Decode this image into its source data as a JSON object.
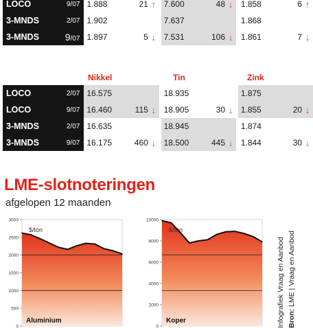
{
  "table_top": {
    "rows": [
      {
        "label": "LOCO",
        "date": "9/07",
        "cells": [
          {
            "value": "1.888",
            "change": "21",
            "dir": "up"
          },
          {
            "value": "7.600",
            "change": "48",
            "dir": "down"
          },
          {
            "value": "1.858",
            "change": "6",
            "dir": "up"
          }
        ]
      },
      {
        "label": "3-MNDS",
        "date": "2/07",
        "cells": [
          {
            "value": "1.902",
            "change": "",
            "dir": ""
          },
          {
            "value": "7.637",
            "change": "",
            "dir": ""
          },
          {
            "value": "1.868",
            "change": "",
            "dir": ""
          }
        ]
      },
      {
        "label": "3-MNDS",
        "date": "9/07",
        "date_main": "9",
        "date_sub": "/07",
        "cells": [
          {
            "value": "1.897",
            "change": "5",
            "dir": "down"
          },
          {
            "value": "7.531",
            "change": "106",
            "dir": "down"
          },
          {
            "value": "1.861",
            "change": "7",
            "dir": "down"
          }
        ]
      }
    ]
  },
  "table_bottom": {
    "headers": [
      "Nikkel",
      "Tin",
      "Zink"
    ],
    "rows": [
      {
        "label": "LOCO",
        "date": "2/07",
        "cells": [
          {
            "value": "16.575",
            "change": "",
            "dir": ""
          },
          {
            "value": "18.935",
            "change": "",
            "dir": ""
          },
          {
            "value": "1.875",
            "change": "",
            "dir": ""
          }
        ]
      },
      {
        "label": "LOCO",
        "date": "9/07",
        "cells": [
          {
            "value": "16.460",
            "change": "115",
            "dir": "down"
          },
          {
            "value": "18.905",
            "change": "30",
            "dir": "down"
          },
          {
            "value": "1.855",
            "change": "20",
            "dir": "down"
          }
        ]
      },
      {
        "label": "3-MNDS",
        "date": "2/07",
        "cells": [
          {
            "value": "16.635",
            "change": "",
            "dir": ""
          },
          {
            "value": "18.945",
            "change": "",
            "dir": ""
          },
          {
            "value": "1.874",
            "change": "",
            "dir": ""
          }
        ]
      },
      {
        "label": "3-MNDS",
        "date": "9/07",
        "cells": [
          {
            "value": "16.175",
            "change": "460",
            "dir": "down"
          },
          {
            "value": "18.500",
            "change": "445",
            "dir": "down"
          },
          {
            "value": "1.844",
            "change": "30",
            "dir": "down"
          }
        ]
      }
    ]
  },
  "section": {
    "title": "LME-slotnoteringen",
    "subtitle": "afgelopen 12 maanden"
  },
  "credits": {
    "line1": "Infografiek Vraag en Aanbod",
    "line2_bold": "Bron:",
    "line2_rest": " LME | Vraag en Aanbod"
  },
  "colors": {
    "accent": "#e0241a",
    "up": "#2a9d3f",
    "down": "#e2431f",
    "label_bg": "#151515",
    "shade": "#dcdcdc"
  },
  "chart_data": [
    {
      "type": "area",
      "name": "Aluminium",
      "unit": "$/ton",
      "ylim": [
        0,
        3000
      ],
      "yticks": [
        0,
        500,
        1000,
        1500,
        2000,
        2500,
        3000
      ],
      "gridlines": [
        1000,
        2000
      ],
      "values": [
        2620,
        2570,
        2460,
        2340,
        2220,
        2160,
        2260,
        2330,
        2310,
        2180,
        2120,
        2030
      ]
    },
    {
      "type": "area",
      "name": "Koper",
      "unit": "$/ton",
      "ylim": [
        0,
        10000
      ],
      "yticks": [
        0,
        2000,
        4000,
        6000,
        8000,
        10000
      ],
      "gridlines": [
        6667,
        3333
      ],
      "values": [
        9900,
        9700,
        8800,
        7800,
        8000,
        8100,
        8600,
        8850,
        8900,
        8700,
        8400,
        7900
      ]
    }
  ]
}
